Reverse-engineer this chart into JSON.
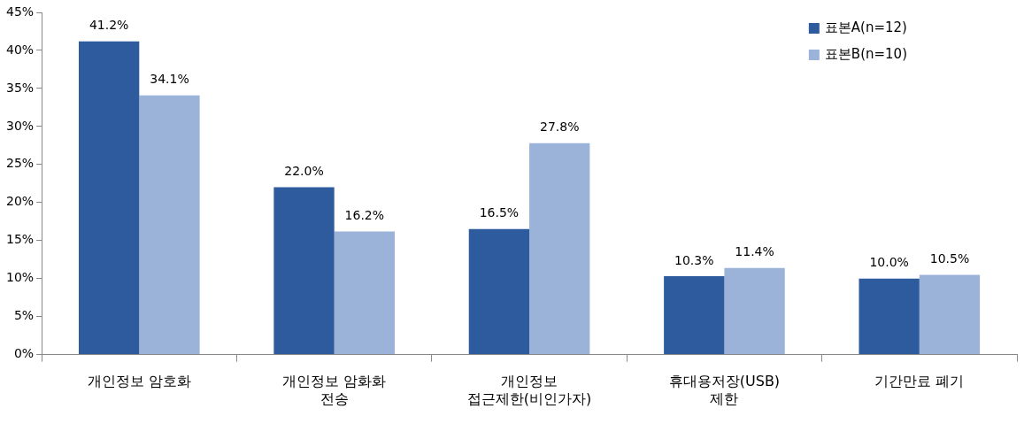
{
  "chart_data": {
    "type": "bar",
    "categories": [
      "개인정보 암호화",
      "개인정보 암화화\n전송",
      "개인정보\n접근제한(비인가자)",
      "휴대용저장(USB)\n제한",
      "기간만료 폐기"
    ],
    "series": [
      {
        "name": "표본A(n=12)",
        "color": "#2e5b9e",
        "values": [
          41.2,
          22.0,
          16.5,
          10.3,
          10.0
        ],
        "value_labels": [
          "41.2%",
          "22.0%",
          "16.5%",
          "10.3%",
          "10.0%"
        ]
      },
      {
        "name": "표본B(n=10)",
        "color": "#9bb3d9",
        "values": [
          34.1,
          16.2,
          27.8,
          11.4,
          10.5
        ],
        "value_labels": [
          "34.1%",
          "16.2%",
          "27.8%",
          "11.4%",
          "10.5%"
        ]
      }
    ],
    "ylim": [
      0,
      45
    ],
    "yticks": [
      {
        "value": 0,
        "label": "0%"
      },
      {
        "value": 5,
        "label": "5%"
      },
      {
        "value": 10,
        "label": "10%"
      },
      {
        "value": 15,
        "label": "15%"
      },
      {
        "value": 20,
        "label": "20%"
      },
      {
        "value": 25,
        "label": "25%"
      },
      {
        "value": 30,
        "label": "30%"
      },
      {
        "value": 35,
        "label": "35%"
      },
      {
        "value": 40,
        "label": "40%"
      },
      {
        "value": 45,
        "label": "45%"
      }
    ],
    "grid": false,
    "legend": "top right"
  }
}
